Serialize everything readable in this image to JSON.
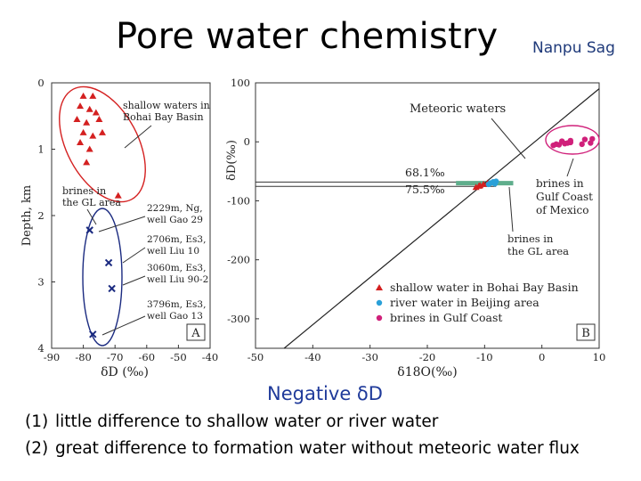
{
  "title": "Pore water chemistry",
  "subtitle": "Nanpu Sag",
  "caption": "Negative δD",
  "notes": [
    {
      "num": "(1)",
      "text": "little difference to shallow water or river water"
    },
    {
      "num": "(2)",
      "text": "great difference to formation water without meteoric water flux"
    }
  ],
  "colors": {
    "red": "#d42020",
    "blue": "#1a2a80",
    "cyan": "#2aa0d8",
    "magenta": "#d0207a",
    "green": "#5fae8c"
  },
  "chart_data": [
    {
      "type": "scatter",
      "panel_label": "A",
      "xlabel": "δD (‰)",
      "ylabel": "Depth, km",
      "xlim": [
        -90,
        -40
      ],
      "ylim": [
        0,
        4
      ],
      "x_ticks": [
        "-90",
        "-80",
        "-70",
        "-60",
        "-50",
        "-40"
      ],
      "y_ticks": [
        "0",
        "1",
        "2",
        "3",
        "4"
      ],
      "series": [
        {
          "group": "shallow",
          "marker": "triangle",
          "color": "#d42020",
          "points": [
            [
              -80,
              0.2
            ],
            [
              -77,
              0.2
            ],
            [
              -81,
              0.35
            ],
            [
              -78,
              0.4
            ],
            [
              -76,
              0.45
            ],
            [
              -82,
              0.55
            ],
            [
              -79,
              0.6
            ],
            [
              -75,
              0.55
            ],
            [
              -80,
              0.75
            ],
            [
              -77,
              0.8
            ],
            [
              -74,
              0.75
            ],
            [
              -81,
              0.9
            ],
            [
              -78,
              1.0
            ],
            [
              -79,
              1.2
            ],
            [
              -69,
              1.7
            ]
          ]
        },
        {
          "group": "brines",
          "marker": "x",
          "color": "#1a2a80",
          "points": [
            [
              -78,
              2.22
            ],
            [
              -72,
              2.71
            ],
            [
              -71,
              3.1
            ],
            [
              -77,
              3.79
            ]
          ]
        }
      ],
      "annotations": [
        {
          "lines": [
            "shallow waters in",
            "Bohai Bay Basin"
          ]
        },
        {
          "lines": [
            "brines in",
            "the GL area"
          ]
        },
        {
          "lines": [
            "2229m, Ng,",
            "well Gao 29"
          ]
        },
        {
          "lines": [
            "2706m, Es3,",
            "well Liu 10"
          ]
        },
        {
          "lines": [
            "3060m, Es3,",
            "well Liu 90-2"
          ]
        },
        {
          "lines": [
            "3796m, Es3,",
            "well Gao 13"
          ]
        }
      ]
    },
    {
      "type": "scatter",
      "panel_label": "B",
      "xlabel": "δ18O(‰)",
      "ylabel": "δD(‰)",
      "xlim": [
        -50,
        10
      ],
      "ylim": [
        -350,
        100
      ],
      "x_ticks": [
        "-50",
        "-40",
        "-30",
        "-20",
        "-10",
        "0",
        "10"
      ],
      "y_ticks": [
        "100",
        "0",
        "-100",
        "-200",
        "-300"
      ],
      "meteoric_line": {
        "label": "Meteoric waters",
        "slope": 8,
        "intercept": 10
      },
      "reference_lines": [
        {
          "label": "68.1‰",
          "y": -68.1
        },
        {
          "label": "75.5‰",
          "y": -75.5
        }
      ],
      "band": {
        "x": [
          -15,
          -5
        ],
        "y": -70
      },
      "series": [
        {
          "name": "shallow water in Bohai Bay Basin",
          "marker": "triangle",
          "color": "#d42020",
          "points": [
            [
              -11.5,
              -77
            ],
            [
              -10.8,
              -74
            ],
            [
              -10.2,
              -72
            ],
            [
              -9.5,
              -70
            ],
            [
              -11,
              -75
            ]
          ]
        },
        {
          "name": "river water in Beijing area",
          "marker": "circle",
          "color": "#2aa0d8",
          "points": [
            [
              -9,
              -70
            ],
            [
              -8.5,
              -68
            ],
            [
              -8,
              -67
            ],
            [
              -9.3,
              -72
            ],
            [
              -8.2,
              -71
            ]
          ]
        },
        {
          "name": "brines in Gulf Coast",
          "marker": "circle",
          "color": "#d0207a",
          "points": [
            [
              2,
              -6
            ],
            [
              3,
              -5
            ],
            [
              4,
              -3
            ],
            [
              5,
              -1
            ],
            [
              3.5,
              1
            ],
            [
              4.5,
              -2
            ],
            [
              2.5,
              -4
            ],
            [
              5,
              2
            ],
            [
              7,
              -4
            ],
            [
              7.5,
              4
            ],
            [
              8.5,
              -2
            ],
            [
              8.8,
              5
            ]
          ]
        }
      ],
      "annotations": [
        {
          "lines": [
            "brines in",
            "Gulf Coast",
            "of Mexico"
          ]
        },
        {
          "lines": [
            "brines in",
            "the GL area"
          ]
        }
      ]
    }
  ]
}
